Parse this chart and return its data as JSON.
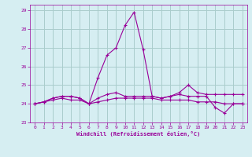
{
  "xlabel": "Windchill (Refroidissement éolien,°C)",
  "background_color": "#d6eef2",
  "grid_color": "#aacccc",
  "line_color": "#990099",
  "xlim": [
    -0.5,
    23.5
  ],
  "ylim": [
    23,
    29.3
  ],
  "yticks": [
    23,
    24,
    25,
    26,
    27,
    28,
    29
  ],
  "xticks": [
    0,
    1,
    2,
    3,
    4,
    5,
    6,
    7,
    8,
    9,
    10,
    11,
    12,
    13,
    14,
    15,
    16,
    17,
    18,
    19,
    20,
    21,
    22,
    23
  ],
  "series": [
    [
      24.0,
      24.1,
      24.3,
      24.4,
      24.4,
      24.3,
      24.0,
      25.4,
      26.6,
      27.0,
      28.2,
      28.9,
      26.9,
      24.4,
      24.3,
      24.4,
      24.5,
      24.4,
      24.4,
      24.4,
      23.8,
      23.5,
      24.0,
      24.0
    ],
    [
      24.0,
      24.1,
      24.3,
      24.4,
      24.4,
      24.3,
      24.0,
      24.3,
      24.5,
      24.6,
      24.4,
      24.4,
      24.4,
      24.4,
      24.3,
      24.4,
      24.6,
      25.0,
      24.6,
      24.5,
      24.5,
      24.5,
      24.5,
      24.5
    ],
    [
      24.0,
      24.1,
      24.2,
      24.3,
      24.2,
      24.2,
      24.0,
      24.1,
      24.2,
      24.3,
      24.3,
      24.3,
      24.3,
      24.3,
      24.2,
      24.2,
      24.2,
      24.2,
      24.1,
      24.1,
      24.1,
      24.0,
      24.0,
      24.0
    ]
  ]
}
